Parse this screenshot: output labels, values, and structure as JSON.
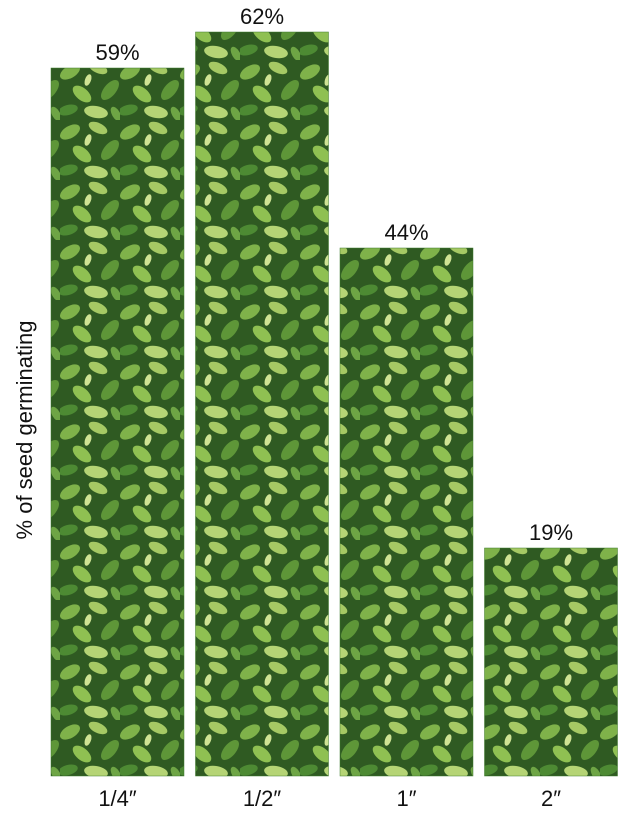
{
  "chart_data": {
    "type": "bar",
    "y_label": "% of seed germinating",
    "categories": [
      "1/4″",
      "1/2″",
      "1″",
      "2″"
    ],
    "values": [
      59,
      62,
      44,
      19
    ],
    "value_labels": [
      "59%",
      "62%",
      "44%",
      "19%"
    ],
    "color": "#3f7a2c"
  }
}
